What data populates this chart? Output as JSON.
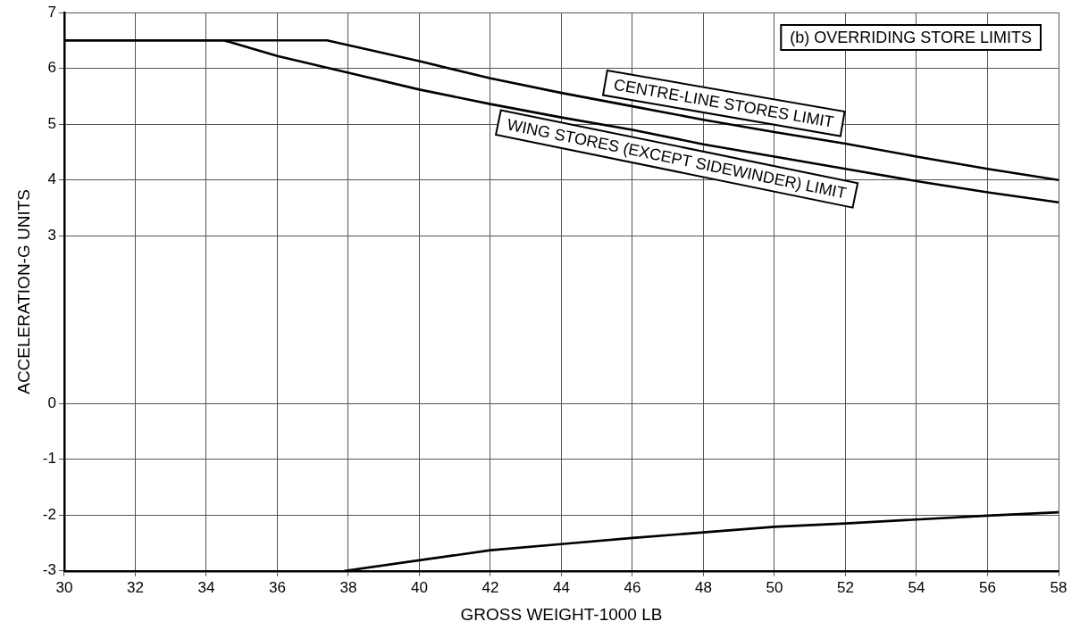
{
  "chart_data": {
    "type": "line",
    "xlabel": "GROSS WEIGHT-1000 LB",
    "ylabel": "ACCELERATION-G UNITS",
    "xlim": [
      30,
      58
    ],
    "xticks": [
      30,
      32,
      34,
      36,
      38,
      40,
      42,
      44,
      46,
      48,
      50,
      52,
      54,
      56,
      58
    ],
    "ylim": [
      -3,
      7
    ],
    "yticks": [
      -3,
      -2,
      -1,
      0,
      3,
      4,
      5,
      6,
      7
    ],
    "grid": true,
    "legend": false,
    "marker": "none",
    "line_style": "solid",
    "series": [
      {
        "color": "#000000",
        "x": [
          30,
          37.4,
          40,
          42,
          44,
          46,
          48,
          50,
          52,
          54,
          56,
          58
        ],
        "values": [
          6.5,
          6.5,
          6.13,
          5.82,
          5.56,
          5.32,
          5.08,
          4.86,
          4.65,
          4.42,
          4.2,
          4.0
        ]
      },
      {
        "color": "#000000",
        "x": [
          30,
          34.5,
          36,
          38,
          40,
          42,
          44,
          46,
          48,
          50,
          52,
          54,
          56,
          58
        ],
        "values": [
          6.5,
          6.5,
          6.22,
          5.92,
          5.62,
          5.36,
          5.12,
          4.9,
          4.64,
          4.42,
          4.2,
          3.98,
          3.78,
          3.6
        ]
      },
      {
        "color": "#000000",
        "x": [
          37.9,
          40,
          42,
          44,
          46,
          48,
          50,
          52,
          54,
          56,
          58
        ],
        "values": [
          -3,
          -2.81,
          -2.63,
          -2.52,
          -2.41,
          -2.31,
          -2.21,
          -2.15,
          -2.08,
          -2.01,
          -1.95
        ]
      }
    ],
    "annotations": [
      "(b) OVERRIDING STORE LIMITS",
      "CENTRE-LINE STORES LIMIT",
      "WING STORES (EXCEPT SIDEWINDER) LIMIT"
    ]
  }
}
